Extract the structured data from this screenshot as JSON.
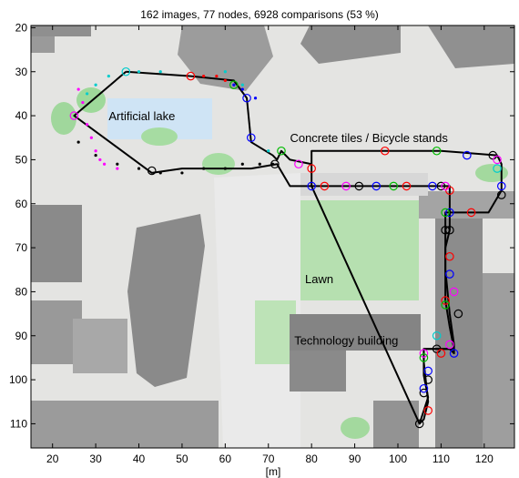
{
  "chart_data": {
    "type": "line",
    "title": "162 images, 77 nodes, 6928 comparisons (53 %)",
    "xlabel": "[m]",
    "ylabel": "",
    "xlim": [
      15,
      127
    ],
    "ylim": [
      115.5,
      19.5
    ],
    "y_direction": "down",
    "grid": false,
    "x_ticks": [
      20,
      30,
      40,
      50,
      60,
      70,
      80,
      90,
      100,
      110,
      120
    ],
    "y_ticks": [
      20,
      30,
      40,
      50,
      60,
      70,
      80,
      90,
      100,
      110
    ],
    "annotations": [
      {
        "text": "Artificial lake",
        "x": 33,
        "y": 41
      },
      {
        "text": "Concrete tiles / Bicycle stands",
        "x": 75,
        "y": 46
      },
      {
        "text": "Lawn",
        "x": 78.5,
        "y": 78
      },
      {
        "text": "Technology building",
        "x": 76,
        "y": 92
      }
    ],
    "series": [
      {
        "type": "line",
        "color": "#000000",
        "x": [
          37,
          52,
          62,
          65,
          66,
          71,
          72,
          73,
          75,
          80,
          80,
          92,
          100,
          110,
          123,
          124,
          124,
          121,
          111,
          111,
          112,
          113,
          113,
          112,
          112,
          106,
          106,
          107,
          106,
          105,
          80,
          75,
          72,
          66,
          50,
          43,
          25,
          37
        ],
        "y": [
          30,
          31,
          32,
          36,
          46,
          49,
          50,
          48,
          50,
          51,
          48,
          48,
          48,
          48,
          49,
          51,
          57,
          62,
          62,
          75,
          85,
          92,
          94,
          93,
          93,
          93,
          96,
          105,
          109,
          110,
          56,
          56,
          51,
          52,
          52,
          53,
          40,
          30
        ]
      },
      {
        "type": "line",
        "color": "#000000",
        "x": [
          80,
          80,
          112,
          112,
          112,
          111,
          111,
          112,
          113,
          111,
          106,
          106,
          107,
          106,
          105
        ],
        "y": [
          51,
          56,
          56,
          62,
          66,
          70,
          82,
          88,
          93,
          93,
          93,
          99,
          104,
          107,
          110
        ]
      },
      {
        "type": "dots",
        "color": "#000000",
        "x": [
          26,
          30,
          35,
          40,
          45,
          50,
          55,
          60,
          64,
          68,
          71
        ],
        "y": [
          46,
          49,
          51,
          52,
          53,
          53,
          52,
          52,
          51,
          51,
          51
        ]
      },
      {
        "type": "dots",
        "color": "#ff00ff",
        "x": [
          26,
          27,
          28,
          29,
          30,
          31,
          32,
          35
        ],
        "y": [
          34,
          37,
          42,
          45,
          48,
          50,
          51,
          52
        ]
      },
      {
        "type": "dots",
        "color": "#00cccc",
        "x": [
          28,
          30,
          33,
          40,
          45,
          60,
          64,
          70
        ],
        "y": [
          35,
          33,
          31,
          30,
          30,
          30,
          33,
          48
        ]
      },
      {
        "type": "dots",
        "color": "#0000ff",
        "x": [
          62,
          64,
          67
        ],
        "y": [
          33,
          34,
          36
        ]
      },
      {
        "type": "dots",
        "color": "#ff0000",
        "x": [
          55,
          58,
          60
        ],
        "y": [
          31,
          31,
          32
        ]
      },
      {
        "type": "markers",
        "marker": "o",
        "color": "#000000",
        "x": [
          43,
          71.5,
          91,
          110,
          122,
          124,
          111,
          112,
          114,
          109,
          107,
          106,
          105
        ],
        "y": [
          52.5,
          51,
          56,
          56,
          49,
          58,
          66,
          66,
          85,
          93,
          100,
          103,
          110
        ]
      },
      {
        "type": "markers",
        "marker": "o",
        "color": "#ff0000",
        "x": [
          52,
          80,
          83,
          97,
          102,
          112,
          117,
          112,
          111,
          110,
          107
        ],
        "y": [
          31,
          52,
          56,
          48,
          56,
          57,
          62,
          72,
          82,
          94,
          107
        ]
      },
      {
        "type": "markers",
        "marker": "o",
        "color": "#0000ff",
        "x": [
          65,
          66,
          80,
          95,
          108,
          116,
          124,
          112,
          112,
          113,
          107,
          106
        ],
        "y": [
          36,
          45,
          56,
          56,
          56,
          49,
          56,
          62,
          76,
          94,
          98,
          102
        ]
      },
      {
        "type": "markers",
        "marker": "o",
        "color": "#ff00ff",
        "x": [
          25,
          77,
          88,
          111,
          123,
          113,
          112,
          106
        ],
        "y": [
          40,
          51,
          56,
          56,
          50,
          80,
          92,
          94
        ]
      },
      {
        "type": "markers",
        "marker": "o",
        "color": "#00bb00",
        "x": [
          62,
          73,
          99,
          109,
          111,
          111,
          106
        ],
        "y": [
          33,
          48,
          56,
          48,
          62,
          83,
          95
        ]
      },
      {
        "type": "markers",
        "marker": "o",
        "color": "#00cccc",
        "x": [
          37,
          123,
          109
        ],
        "y": [
          30,
          52,
          90
        ]
      }
    ]
  }
}
